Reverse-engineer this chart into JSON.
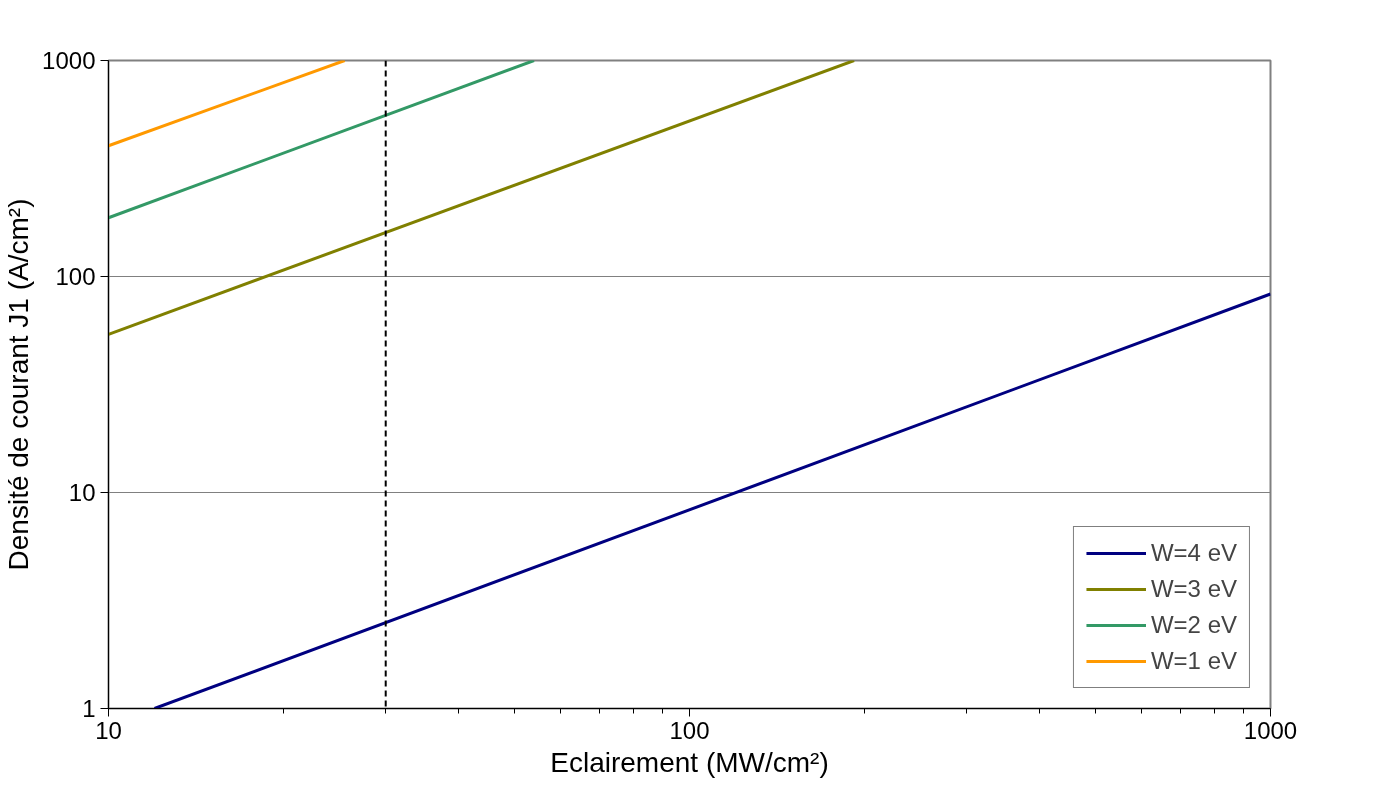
{
  "chart_data": {
    "type": "line",
    "xlabel": "Eclairement (MW/cm²)",
    "ylabel": "Densité de courant J1 (A/cm²)",
    "log": "xy",
    "xlim": [
      10,
      1000
    ],
    "ylim": [
      1,
      1000
    ],
    "xticks": [
      10,
      100,
      1000
    ],
    "yticks": [
      1,
      10,
      100,
      1000
    ],
    "grid": "y",
    "legend": "bottom right",
    "line_style": "solid",
    "marker": "none",
    "series": [
      {
        "name": "W=4 eV",
        "color": "#000080",
        "x": [
          12,
          1000
        ],
        "values": [
          1,
          83
        ]
      },
      {
        "name": "W=3 eV",
        "color": "#808000",
        "x": [
          10,
          192
        ],
        "values": [
          54,
          1000
        ]
      },
      {
        "name": "W=2 eV",
        "color": "#339966",
        "x": [
          10,
          54
        ],
        "values": [
          187,
          1000
        ]
      },
      {
        "name": "W=1 eV",
        "color": "#ff9900",
        "x": [
          10,
          25.5
        ],
        "values": [
          403,
          1000
        ]
      }
    ],
    "ref_lines": [
      {
        "axis": "x",
        "value": 30,
        "color": "#000000",
        "line_style": "dashed"
      }
    ]
  }
}
